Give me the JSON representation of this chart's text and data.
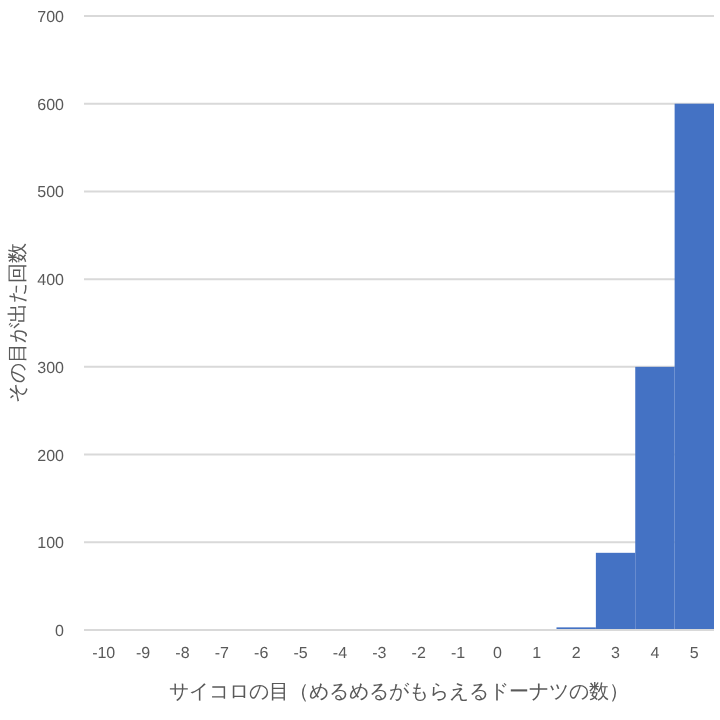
{
  "chart_data": {
    "type": "bar",
    "xlabel": "サイコロの目（めるめるがもらえるドーナツの数）",
    "ylabel": "その目が出た回数",
    "categories": [
      "-10",
      "-9",
      "-8",
      "-7",
      "-6",
      "-5",
      "-4",
      "-3",
      "-2",
      "-1",
      "0",
      "1",
      "2",
      "3",
      "4",
      "5"
    ],
    "values": [
      0,
      0,
      0,
      0,
      0,
      0,
      0,
      0,
      0,
      0,
      0,
      1,
      3,
      88,
      300,
      600
    ],
    "color": "#4472c4",
    "ylim": [
      0,
      700
    ],
    "yticks": [
      0,
      100,
      200,
      300,
      400,
      500,
      600,
      700
    ],
    "grid": "y"
  }
}
